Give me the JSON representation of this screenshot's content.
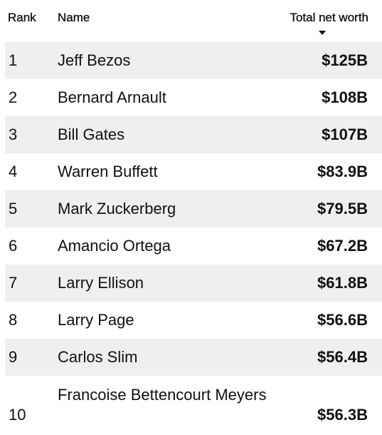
{
  "header": {
    "rank": "Rank",
    "name": "Name",
    "worth": "Total net worth",
    "sort_icon": "caret-down-icon"
  },
  "rows": [
    {
      "rank": "1",
      "name": "Jeff Bezos",
      "worth": "$125B"
    },
    {
      "rank": "2",
      "name": "Bernard Arnault",
      "worth": "$108B"
    },
    {
      "rank": "3",
      "name": "Bill Gates",
      "worth": "$107B"
    },
    {
      "rank": "4",
      "name": "Warren Buffett",
      "worth": "$83.9B"
    },
    {
      "rank": "5",
      "name": "Mark Zuckerberg",
      "worth": "$79.5B"
    },
    {
      "rank": "6",
      "name": "Amancio Ortega",
      "worth": "$67.2B"
    },
    {
      "rank": "7",
      "name": "Larry Ellison",
      "worth": "$61.8B"
    },
    {
      "rank": "8",
      "name": "Larry Page",
      "worth": "$56.6B"
    },
    {
      "rank": "9",
      "name": "Carlos Slim",
      "worth": "$56.4B"
    },
    {
      "rank": "10",
      "name": "Francoise Bettencourt Meyers",
      "worth": "$56.3B"
    }
  ],
  "colors": {
    "row_shade": "#efefef",
    "text": "#111111"
  }
}
